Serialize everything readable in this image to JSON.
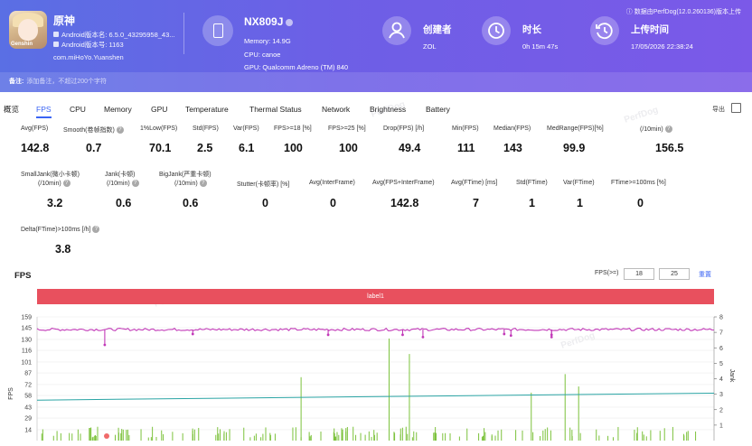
{
  "app": {
    "name": "原神",
    "android_version_name": "Android版本名: 6.5.0_43295958_43...",
    "android_version_code": "Android版本号: 1163",
    "package": "com.miHoYo.Yuanshen",
    "logo_text": "Genshin"
  },
  "device": {
    "model": "NX809J",
    "memory": "Memory: 14.9G",
    "cpu": "CPU: canoe",
    "gpu": "GPU: Qualcomm Adreno (TM) 840"
  },
  "creator": {
    "title": "创建者",
    "value": "ZOL"
  },
  "duration": {
    "title": "时长",
    "value": "0h 15m 47s"
  },
  "upload": {
    "title": "上传时间",
    "value": "17/05/2026 22:38:24"
  },
  "uploader_note": "数据由PerfDog(12.0.260136)版本上传",
  "remark": {
    "label": "备注:",
    "placeholder": "添加备注，不超过200个字符"
  },
  "tabs": [
    "概览",
    "FPS",
    "CPU",
    "Memory",
    "GPU",
    "Temperature",
    "Thermal Status",
    "Network",
    "Brightness",
    "Battery"
  ],
  "active_tab": "FPS",
  "export_label": "导出",
  "watermark": "PerfDog",
  "stats_row1": [
    {
      "label": "Avg(FPS)",
      "value": "142.8"
    },
    {
      "label": "Smooth(卷帧指数)",
      "value": "0.7"
    },
    {
      "label": "1%Low(FPS)",
      "value": "70.1"
    },
    {
      "label": "Std(FPS)",
      "value": "2.5"
    },
    {
      "label": "Var(FPS)",
      "value": "6.1"
    },
    {
      "label": "FPS>=18 [%]",
      "value": "100"
    },
    {
      "label": "FPS>=25 [%]",
      "value": "100"
    },
    {
      "label": "Drop(FPS) [/h]",
      "value": "49.4"
    },
    {
      "label": "Min(FPS)",
      "value": "111"
    },
    {
      "label": "Median(FPS)",
      "value": "143"
    },
    {
      "label": "MedRange(FPS)[%]",
      "value": "99.9"
    },
    {
      "label": "(/10min)",
      "value": "156.5"
    }
  ],
  "stats_row2": [
    {
      "label": "SmallJank(微小卡顿)",
      "label2": "(/10min)",
      "value": "3.2"
    },
    {
      "label": "Jank(卡顿)",
      "label2": "(/10min)",
      "value": "0.6"
    },
    {
      "label": "BigJank(严重卡顿)",
      "label2": "(/10min)",
      "value": "0.6"
    },
    {
      "label": "Stutter(卡顿率) [%]",
      "value": "0"
    },
    {
      "label": "Avg(InterFrame)",
      "value": "0"
    },
    {
      "label": "Avg(FPS+InterFrame)",
      "value": "142.8"
    },
    {
      "label": "Avg(FTime) [ms]",
      "value": "7"
    },
    {
      "label": "Std(FTime)",
      "value": "1"
    },
    {
      "label": "Var(FTime)",
      "value": "1"
    },
    {
      "label": "FTime>=100ms [%]",
      "value": "0"
    }
  ],
  "stats_row3": [
    {
      "label": "Delta(FTime)>100ms [/h]",
      "value": "3.8"
    }
  ],
  "fps_chart": {
    "title": "FPS",
    "threshold_label": "FPS(>=)",
    "threshold_low": "18",
    "threshold_high": "25",
    "reset_label": "重置",
    "band_label": "label1",
    "y_axis_label": "FPS",
    "y2_axis_label": "Jank",
    "colors": {
      "fps": "#c23ab8",
      "jank": "#7cc23c",
      "trend": "#2aa4a4",
      "band": "#e8505e"
    }
  },
  "chart_data": {
    "type": "line",
    "y_ticks": [
      159,
      145,
      130,
      116,
      101,
      87,
      72,
      58,
      43,
      29,
      14
    ],
    "y2_ticks": [
      8,
      7,
      6,
      5,
      4,
      3,
      2,
      1
    ],
    "ylim": [
      0,
      159
    ],
    "y2lim": [
      0,
      8
    ],
    "series": [
      {
        "name": "FPS",
        "avg": 142.8,
        "dips": [
          [
            0.1,
            123
          ],
          [
            0.23,
            137
          ],
          [
            0.43,
            136
          ],
          [
            0.54,
            136
          ],
          [
            0.57,
            133
          ],
          [
            0.69,
            137
          ],
          [
            0.7,
            135
          ],
          [
            0.76,
            136
          ],
          [
            0.76,
            133
          ]
        ]
      },
      {
        "name": "Jank",
        "spikes": [
          [
            0.39,
            4.1
          ],
          [
            0.52,
            6.6
          ],
          [
            0.55,
            5.6
          ],
          [
            0.73,
            3.1
          ],
          [
            0.78,
            4.3
          ],
          [
            0.8,
            3.5
          ]
        ]
      }
    ],
    "trend": {
      "start": 52,
      "end": 61
    }
  }
}
